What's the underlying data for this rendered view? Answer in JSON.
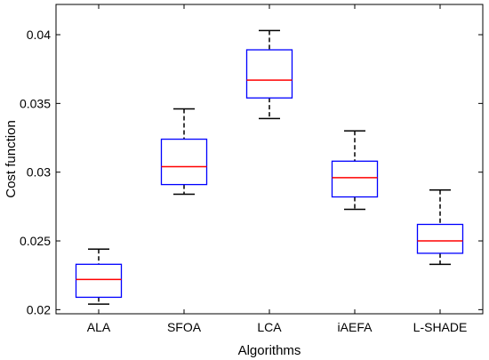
{
  "chart_data": {
    "type": "boxplot",
    "xlabel": "Algorithms",
    "ylabel": "Cost function",
    "ylim": [
      0.0197,
      0.0422
    ],
    "yticks": [
      0.02,
      0.025,
      0.03,
      0.035,
      0.04
    ],
    "yticklabels": [
      "0.02",
      "0.025",
      "0.03",
      "0.035",
      "0.04"
    ],
    "grid": false,
    "categories": [
      "ALA",
      "SFOA",
      "LCA",
      "iAEFA",
      "L-SHADE"
    ],
    "boxes": [
      {
        "name": "ALA",
        "whisker_low": 0.0204,
        "q1": 0.0209,
        "median": 0.0222,
        "q3": 0.0233,
        "whisker_high": 0.0244
      },
      {
        "name": "SFOA",
        "whisker_low": 0.0284,
        "q1": 0.0291,
        "median": 0.0304,
        "q3": 0.0324,
        "whisker_high": 0.0346
      },
      {
        "name": "LCA",
        "whisker_low": 0.0339,
        "q1": 0.0354,
        "median": 0.0367,
        "q3": 0.0389,
        "whisker_high": 0.0403
      },
      {
        "name": "iAEFA",
        "whisker_low": 0.0273,
        "q1": 0.0282,
        "median": 0.0296,
        "q3": 0.0308,
        "whisker_high": 0.033
      },
      {
        "name": "L-SHADE",
        "whisker_low": 0.0233,
        "q1": 0.0241,
        "median": 0.025,
        "q3": 0.0262,
        "whisker_high": 0.0287
      }
    ],
    "colors": {
      "box": "#0000ff",
      "median": "#ff0000",
      "whisker": "#000000",
      "axis": "#000000"
    }
  }
}
